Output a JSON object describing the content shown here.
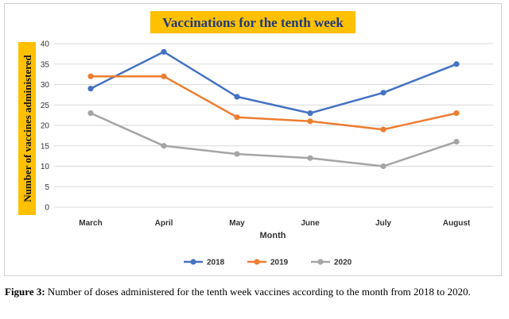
{
  "chart_data": {
    "type": "line",
    "title": "Vaccinations for the tenth week",
    "xlabel": "Month",
    "ylabel": "Number of vaccines administered",
    "categories": [
      "March",
      "April",
      "May",
      "June",
      "July",
      "August"
    ],
    "ylim": [
      0,
      40
    ],
    "yticks": [
      0,
      5,
      10,
      15,
      20,
      25,
      30,
      35,
      40
    ],
    "grid": true,
    "legend_position": "bottom",
    "series": [
      {
        "name": "2018",
        "color": "#4472c4",
        "values": [
          29,
          38,
          27,
          23,
          28,
          35
        ]
      },
      {
        "name": "2019",
        "color": "#ed7d31",
        "values": [
          32,
          32,
          22,
          21,
          19,
          23
        ]
      },
      {
        "name": "2020",
        "color": "#a5a5a5",
        "values": [
          23,
          15,
          13,
          12,
          10,
          16
        ]
      }
    ],
    "title_background": "#ffc000",
    "ylabel_background": "#ffc000"
  },
  "caption": {
    "label": "Figure 3:",
    "text": " Number of doses administered for the tenth week vaccines according to the month from 2018 to 2020."
  }
}
